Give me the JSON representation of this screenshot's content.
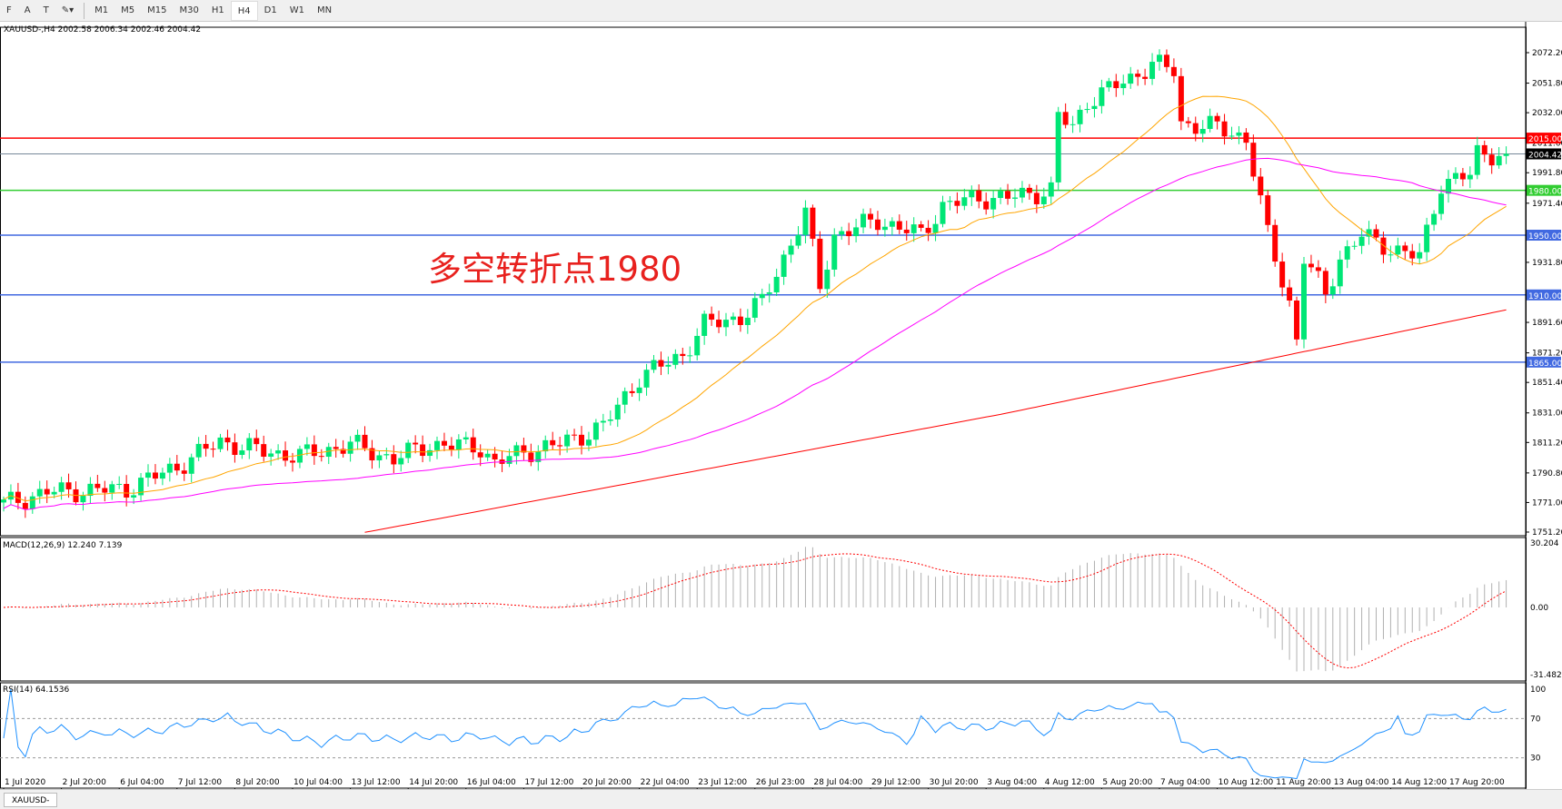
{
  "toolbar": {
    "tools": [
      "F",
      "A",
      "T",
      "draw"
    ],
    "timeframes": [
      "M1",
      "M5",
      "M15",
      "M30",
      "H1",
      "H4",
      "D1",
      "W1",
      "MN"
    ],
    "active": "H4"
  },
  "header": {
    "symbol_label": "XAUUSD-,H4  2002.58 2006.34 2002.46 2004.42"
  },
  "annotation": "多空转折点1980",
  "chart_data": {
    "type": "candlestick",
    "symbol": "XAUUSD-",
    "timeframe": "H4",
    "ohlc_last": {
      "open": 2002.58,
      "high": 2006.34,
      "low": 2002.46,
      "close": 2004.42
    },
    "ylim": [
      1751.2,
      2072.2
    ],
    "price_ticks": [
      "2072.20",
      "2051.80",
      "2032.00",
      "2011.60",
      "1991.80",
      "1971.40",
      "1931.80",
      "1891.60",
      "1871.20",
      "1851.40",
      "1831.00",
      "1811.20",
      "1790.80",
      "1771.00",
      "1751.20"
    ],
    "close_path_bar_price": [
      [
        0,
        1770
      ],
      [
        6,
        1778
      ],
      [
        17,
        1780
      ],
      [
        24,
        1795
      ],
      [
        30,
        1812
      ],
      [
        36,
        1805
      ],
      [
        41,
        1802
      ],
      [
        48,
        1810
      ],
      [
        54,
        1800
      ],
      [
        59,
        1810
      ],
      [
        66,
        1808
      ],
      [
        68,
        1797
      ],
      [
        72,
        1805
      ],
      [
        77,
        1810
      ],
      [
        83,
        1822
      ],
      [
        88,
        1855
      ],
      [
        94,
        1870
      ],
      [
        97,
        1890
      ],
      [
        102,
        1895
      ],
      [
        105,
        1905
      ],
      [
        108,
        1935
      ],
      [
        111,
        1965
      ],
      [
        113,
        1915
      ],
      [
        115,
        1950
      ],
      [
        121,
        1960
      ],
      [
        127,
        1950
      ],
      [
        130,
        1970
      ],
      [
        135,
        1975
      ],
      [
        139,
        1975
      ],
      [
        145,
        1980
      ],
      [
        146,
        2030
      ],
      [
        148,
        2022
      ],
      [
        150,
        2040
      ],
      [
        156,
        2055
      ],
      [
        159,
        2065
      ],
      [
        162,
        2060
      ],
      [
        163,
        2025
      ],
      [
        168,
        2022
      ],
      [
        172,
        2015
      ],
      [
        175,
        1950
      ],
      [
        178,
        1905
      ],
      [
        179,
        1880
      ],
      [
        180,
        1935
      ],
      [
        183,
        1910
      ],
      [
        185,
        1935
      ],
      [
        188,
        1950
      ],
      [
        190,
        1945
      ],
      [
        196,
        1935
      ],
      [
        199,
        1985
      ],
      [
        203,
        1990
      ],
      [
        204,
        2005
      ],
      [
        208,
        2004.42
      ]
    ],
    "ma_long_bar_price": [
      [
        50,
        1751
      ],
      [
        138,
        1830
      ],
      [
        178,
        1870
      ],
      [
        208,
        1900
      ]
    ],
    "horizontal_lines": [
      {
        "price": 2015.0,
        "label": "2015.00",
        "color": "#ff0000"
      },
      {
        "price": 2004.42,
        "label": "2004.42",
        "color": "#778899",
        "current": true
      },
      {
        "price": 1980.0,
        "label": "1980.00",
        "color": "#32cd32"
      },
      {
        "price": 1950.0,
        "label": "1950.00",
        "color": "#4169e1"
      },
      {
        "price": 1910.0,
        "label": "1910.00",
        "color": "#4169e1"
      },
      {
        "price": 1865.0,
        "label": "1865.00",
        "color": "#4169e1"
      }
    ],
    "colors": {
      "bull": "#00e676",
      "bear": "#ff0000",
      "ma_fast": "#ffa500",
      "ma_mid": "#ff00ff",
      "ma_long": "#ff0000"
    },
    "macd": {
      "label": "MACD(12,26,9) 12.240 7.139",
      "ticks": [
        "30.204",
        "0.00",
        "-31.482"
      ],
      "range": [
        -31.482,
        30.204
      ]
    },
    "rsi": {
      "label": "RSI(14) 64.1536",
      "ticks": [
        "100",
        "70",
        "30"
      ],
      "levels": [
        70,
        30
      ]
    },
    "time_labels": [
      "1 Jul 2020",
      "2 Jul 20:00",
      "6 Jul 04:00",
      "7 Jul 12:00",
      "8 Jul 20:00",
      "10 Jul 04:00",
      "13 Jul 12:00",
      "14 Jul 20:00",
      "16 Jul 04:00",
      "17 Jul 12:00",
      "20 Jul 20:00",
      "22 Jul 04:00",
      "23 Jul 12:00",
      "26 Jul 23:00",
      "28 Jul 04:00",
      "29 Jul 12:00",
      "30 Jul 20:00",
      "3 Aug 04:00",
      "4 Aug 12:00",
      "5 Aug 20:00",
      "7 Aug 04:00",
      "10 Aug 12:00",
      "11 Aug 20:00",
      "13 Aug 04:00",
      "14 Aug 12:00",
      "17 Aug 20:00"
    ],
    "bars_per_time_label": 8
  }
}
